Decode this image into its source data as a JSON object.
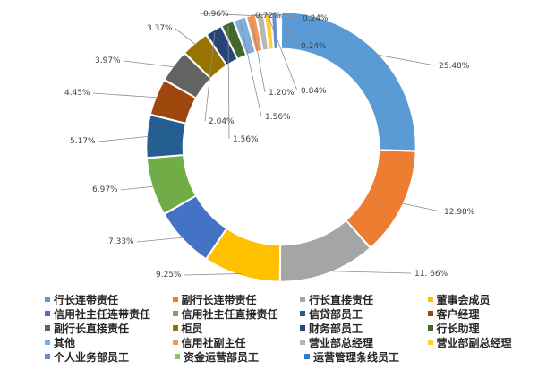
{
  "chart_data": {
    "type": "doughnut",
    "unit": "%",
    "legend_position": "bottom",
    "series": [
      {
        "name": "行长连带责任",
        "value": 25.48,
        "label": "25.48%",
        "color": "#5b9bd5"
      },
      {
        "name": "副行长连带责任",
        "value": 12.98,
        "label": "12.98%",
        "color": "#ed7d31"
      },
      {
        "name": "行长直接责任",
        "value": 11.66,
        "label": "11. 66%",
        "color": "#a5a5a5"
      },
      {
        "name": "董事会成员",
        "value": 9.25,
        "label": "9.25%",
        "color": "#ffc000"
      },
      {
        "name": "信用社主任连带责任",
        "value": 7.33,
        "label": "7.33%",
        "color": "#4472c4"
      },
      {
        "name": "信用社主任直接责任",
        "value": 6.97,
        "label": "6.97%",
        "color": "#70ad47"
      },
      {
        "name": "信贷部员工",
        "value": 5.17,
        "label": "5.17%",
        "color": "#255e91"
      },
      {
        "name": "客户经理",
        "value": 4.45,
        "label": "4.45%",
        "color": "#9e480e"
      },
      {
        "name": "副行长直接责任",
        "value": 3.97,
        "label": "3.97%",
        "color": "#636363"
      },
      {
        "name": "柜员",
        "value": 3.37,
        "label": "3.37%",
        "color": "#997300"
      },
      {
        "name": "财务部员工",
        "value": 2.04,
        "label": "2.04%",
        "color": "#264478"
      },
      {
        "name": "行长助理",
        "value": 1.56,
        "label": "1.56%",
        "color": "#43682b"
      },
      {
        "name": "其他",
        "value": 1.56,
        "label": "1.56%",
        "color": "#7cafdd"
      },
      {
        "name": "信用社副主任",
        "value": 1.2,
        "label": "1.20%",
        "color": "#f1975a"
      },
      {
        "name": "营业部总经理",
        "value": 0.96,
        "label": "0.96%",
        "color": "#b7b7b7"
      },
      {
        "name": "营业部副总经理",
        "value": 0.84,
        "label": "0.84%",
        "color": "#ffcd33"
      },
      {
        "name": "个人业务部员工",
        "value": 0.72,
        "label": "0.72%",
        "color": "#698ed0"
      },
      {
        "name": "资金运营部员工",
        "value": 0.24,
        "label": "0.24%",
        "color": "#8cc168"
      },
      {
        "name": "运营管理条线员工",
        "value": 0.24,
        "label": "0.24%",
        "color": "#327dc2"
      }
    ]
  }
}
